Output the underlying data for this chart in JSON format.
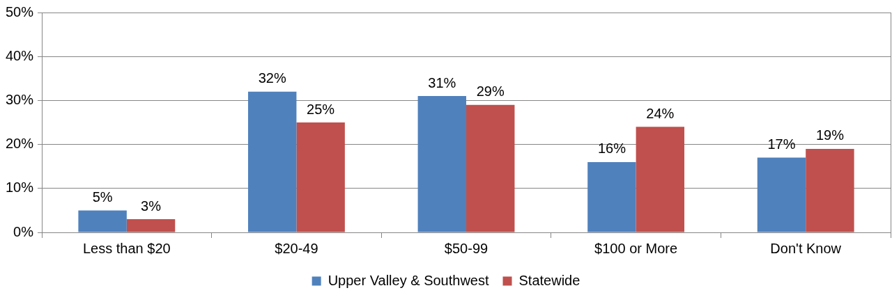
{
  "chart_data": {
    "type": "bar",
    "categories": [
      "Less than $20",
      "$20-49",
      "$50-99",
      "$100 or More",
      "Don't Know"
    ],
    "series": [
      {
        "name": "Upper Valley & Southwest",
        "color": "#4f81bd",
        "values": [
          5,
          32,
          31,
          16,
          17
        ],
        "value_labels": [
          "5%",
          "32%",
          "31%",
          "16%",
          "17%"
        ]
      },
      {
        "name": "Statewide",
        "color": "#c0504d",
        "values": [
          3,
          25,
          29,
          24,
          19
        ],
        "value_labels": [
          "3%",
          "25%",
          "29%",
          "24%",
          "19%"
        ]
      }
    ],
    "ylim": [
      0,
      50
    ],
    "yticks": [
      {
        "value": 0,
        "label": "0%"
      },
      {
        "value": 10,
        "label": "10%"
      },
      {
        "value": 20,
        "label": "20%"
      },
      {
        "value": 30,
        "label": "30%"
      },
      {
        "value": 40,
        "label": "40%"
      },
      {
        "value": 50,
        "label": "50%"
      }
    ],
    "grid": "y",
    "legend": "bottom"
  }
}
